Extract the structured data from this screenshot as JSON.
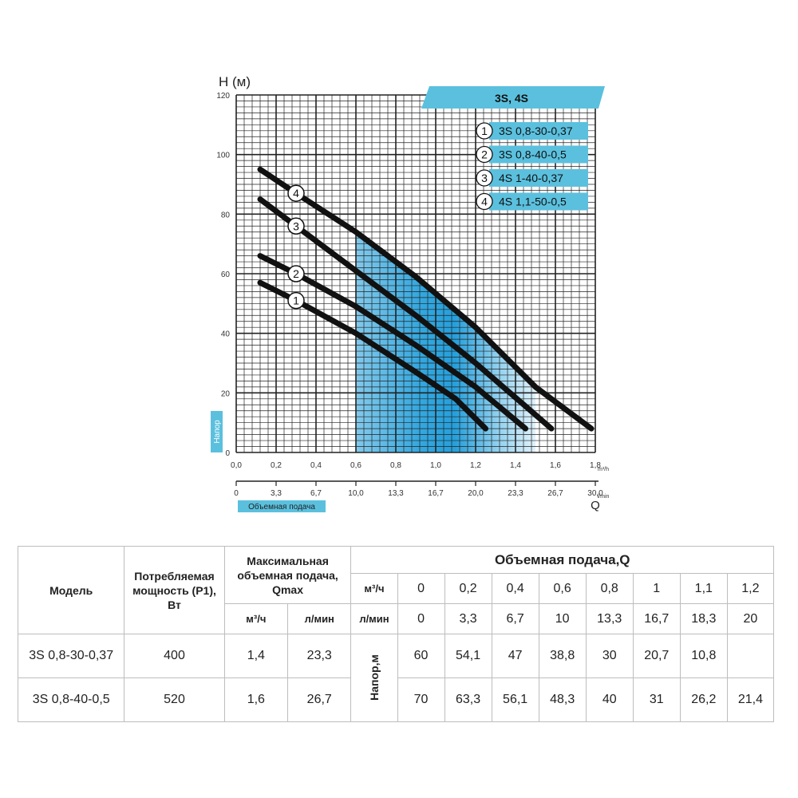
{
  "chart_data": {
    "type": "line",
    "title": "3S, 4S",
    "ylabel": "H (м)",
    "ylabel_tag": "Напор",
    "xlabel_tag": "Объемная подача",
    "x_unit_top": "m³/h",
    "x_unit_bottom": "l/min",
    "q_label": "Q",
    "ylim": [
      0,
      120
    ],
    "xlim": [
      0,
      1.8
    ],
    "y_ticks": [
      "0",
      "20",
      "40",
      "60",
      "80",
      "100",
      "120"
    ],
    "x_ticks_m3h": [
      "0,0",
      "0,2",
      "0,4",
      "0,6",
      "0,8",
      "1,0",
      "1,2",
      "1,4",
      "1,6",
      "1,8"
    ],
    "x_ticks_lmin": [
      "0",
      "3,3",
      "6,7",
      "10,0",
      "13,3",
      "16,7",
      "20,0",
      "23,3",
      "26,7",
      "30,0"
    ],
    "series": [
      {
        "id": "1",
        "name": "3S 0,8-30-0,37",
        "points": [
          [
            0.12,
            57
          ],
          [
            0.3,
            51
          ],
          [
            0.6,
            40
          ],
          [
            0.9,
            27
          ],
          [
            1.1,
            18
          ],
          [
            1.25,
            8
          ]
        ]
      },
      {
        "id": "2",
        "name": "3S 0,8-40-0,5",
        "points": [
          [
            0.12,
            66
          ],
          [
            0.3,
            60
          ],
          [
            0.6,
            49
          ],
          [
            0.9,
            36
          ],
          [
            1.2,
            22
          ],
          [
            1.45,
            8
          ]
        ]
      },
      {
        "id": "3",
        "name": "4S 1-40-0,37",
        "points": [
          [
            0.12,
            85
          ],
          [
            0.3,
            76
          ],
          [
            0.6,
            61
          ],
          [
            0.9,
            46
          ],
          [
            1.2,
            30
          ],
          [
            1.58,
            8
          ]
        ]
      },
      {
        "id": "4",
        "name": "4S 1,1-50-0,5",
        "points": [
          [
            0.12,
            95
          ],
          [
            0.3,
            87
          ],
          [
            0.6,
            74
          ],
          [
            0.9,
            59
          ],
          [
            1.2,
            42
          ],
          [
            1.5,
            22
          ],
          [
            1.78,
            8
          ]
        ]
      }
    ],
    "shaded_region": {
      "x_from": 0.6,
      "x_to": 1.5
    }
  },
  "table": {
    "headers": {
      "model": "Модель",
      "power": "Потребляемая мощность (Р1), Вт",
      "qmax": "Максимальная объемная подача, Qmax",
      "flow": "Объемная подача,Q",
      "unit_m3h": "м³/ч",
      "unit_lmin": "л/мин",
      "head_label": "Напор,м"
    },
    "flow_m3h": [
      "0",
      "0,2",
      "0,4",
      "0,6",
      "0,8",
      "1",
      "1,1",
      "1,2"
    ],
    "flow_lmin": [
      "0",
      "3,3",
      "6,7",
      "10",
      "13,3",
      "16,7",
      "18,3",
      "20"
    ],
    "rows": [
      {
        "model": "3S 0,8-30-0,37",
        "power": "400",
        "qmax_m3h": "1,4",
        "qmax_lmin": "23,3",
        "heads": [
          "60",
          "54,1",
          "47",
          "38,8",
          "30",
          "20,7",
          "10,8",
          ""
        ]
      },
      {
        "model": "3S 0,8-40-0,5",
        "power": "520",
        "qmax_m3h": "1,6",
        "qmax_lmin": "26,7",
        "heads": [
          "70",
          "63,3",
          "56,1",
          "48,3",
          "40",
          "31",
          "26,2",
          "21,4"
        ]
      }
    ]
  }
}
